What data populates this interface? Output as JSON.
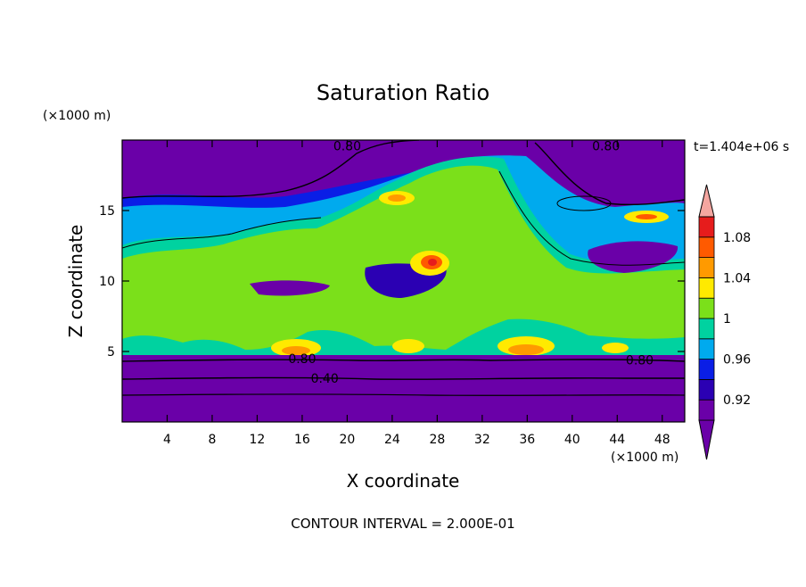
{
  "chart_data": {
    "type": "heatmap",
    "title": "Saturation Ratio",
    "xlabel": "X coordinate",
    "ylabel": "Z coordinate",
    "x_unit": "(×1000 m)",
    "y_unit": "(×1000 m)",
    "time_label": "t=1.404e+06 s",
    "footer": "CONTOUR INTERVAL = 2.000E-01",
    "xlim": [
      0,
      50
    ],
    "ylim": [
      0,
      20
    ],
    "x_ticks": [
      4,
      8,
      12,
      16,
      20,
      24,
      28,
      32,
      36,
      40,
      44,
      48
    ],
    "y_ticks": [
      5,
      10,
      15
    ],
    "colorbar": {
      "colors": [
        "#6a00a8",
        "#2b00b3",
        "#0a1ee6",
        "#00aaee",
        "#00d2a0",
        "#7be01a",
        "#ffea00",
        "#ff9a00",
        "#ff5a00",
        "#e61c1c",
        "#f4a6a0"
      ],
      "tick_labels": [
        "0.92",
        "0.96",
        "1",
        "1.04",
        "1.08"
      ],
      "tick_values": [
        0.92,
        0.96,
        1.0,
        1.04,
        1.08
      ],
      "range": [
        0.9,
        1.1
      ],
      "extend": "both"
    },
    "contour_labels": [
      {
        "text": "0.80",
        "x": 20,
        "z": 19.6
      },
      {
        "text": "0.80",
        "x": 43,
        "z": 19.6
      },
      {
        "text": "0.80",
        "x": 16,
        "z": 4.5
      },
      {
        "text": "0.80",
        "x": 46,
        "z": 4.4
      },
      {
        "text": "0.40",
        "x": 18,
        "z": 3.1
      }
    ]
  }
}
